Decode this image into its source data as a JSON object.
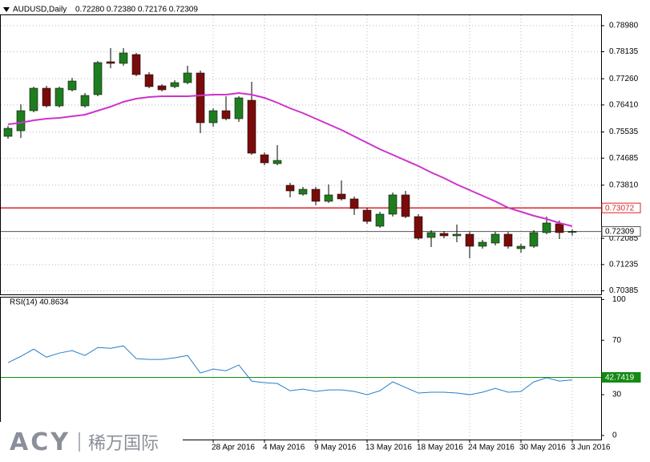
{
  "chart_data": [
    {
      "type": "candlestick",
      "title": "AUDUSD,Daily",
      "subtitle": "0.72280 0.72380 0.72176 0.72309",
      "categories": [
        null,
        null,
        null,
        null,
        null,
        null,
        null,
        null,
        null,
        null,
        null,
        null,
        null,
        null,
        null,
        null,
        "28 Apr 2016",
        null,
        null,
        null,
        "4 May 2016",
        null,
        null,
        null,
        "9 May 2016",
        null,
        null,
        null,
        "13 May 2016",
        null,
        null,
        null,
        "18 May 2016",
        null,
        null,
        null,
        "24 May 2016",
        null,
        null,
        null,
        "30 May 2016",
        null,
        null,
        null,
        "3 Jun 2016"
      ],
      "open": [
        0.75392,
        0.75574,
        0.76224,
        0.76952,
        0.7638,
        0.769,
        0.7638,
        0.76744,
        0.7781,
        0.77758,
        0.78044,
        0.77394,
        0.7703,
        0.77004,
        0.77134,
        0.77446,
        0.75834,
        0.76224,
        0.75964,
        0.76562,
        0.74794,
        0.74508,
        0.73806,
        0.7352,
        0.73676,
        0.73286,
        0.7352,
        0.73364,
        0.73,
        0.7248,
        0.7287,
        0.73494,
        0.72792,
        0.72116,
        0.72246,
        0.72168,
        0.7222,
        0.7183,
        0.71934,
        0.7222,
        0.71752,
        0.7183,
        0.72272,
        0.72558,
        0.7228
      ],
      "high": [
        0.7573,
        0.76432,
        0.77004,
        0.7703,
        0.77004,
        0.7729,
        0.76796,
        0.77836,
        0.78252,
        0.78252,
        0.78096,
        0.77472,
        0.77082,
        0.77212,
        0.7768,
        0.77524,
        0.76302,
        0.76692,
        0.76692,
        0.7716,
        0.74872,
        0.75106,
        0.73884,
        0.73754,
        0.73754,
        0.73832,
        0.73962,
        0.73442,
        0.73078,
        0.72948,
        0.73572,
        0.73624,
        0.7287,
        0.7235,
        0.72324,
        0.72532,
        0.72298,
        0.72038,
        0.72298,
        0.72298,
        0.71908,
        0.7235,
        0.72792,
        0.72662,
        0.7238
      ],
      "low": [
        0.75314,
        0.7534,
        0.76172,
        0.76328,
        0.76328,
        0.76848,
        0.76328,
        0.76692,
        0.77602,
        0.7768,
        0.77342,
        0.76952,
        0.76848,
        0.76952,
        0.77082,
        0.75496,
        0.75704,
        0.75912,
        0.7586,
        0.74794,
        0.74456,
        0.74456,
        0.73416,
        0.73468,
        0.73156,
        0.73234,
        0.73312,
        0.72844,
        0.72558,
        0.72428,
        0.72792,
        0.7274,
        0.72038,
        0.71804,
        0.7209,
        0.7196,
        0.7144,
        0.71752,
        0.71856,
        0.71752,
        0.71622,
        0.71778,
        0.7222,
        0.72064,
        0.72176
      ],
      "close": [
        0.75652,
        0.76224,
        0.76952,
        0.7638,
        0.76952,
        0.77186,
        0.76718,
        0.77784,
        0.77758,
        0.78096,
        0.77394,
        0.77004,
        0.769,
        0.77134,
        0.77446,
        0.75834,
        0.76224,
        0.75964,
        0.7664,
        0.74846,
        0.74534,
        0.74612,
        0.73624,
        0.73676,
        0.73286,
        0.73494,
        0.73364,
        0.73052,
        0.72636,
        0.7287,
        0.73494,
        0.72792,
        0.7209,
        0.72272,
        0.72168,
        0.7222,
        0.7183,
        0.7196,
        0.7222,
        0.7183,
        0.7183,
        0.72272,
        0.72584,
        0.72272,
        0.72309
      ],
      "bull_color": "#1e7d1e",
      "bear_color": "#7a0b0b",
      "wick_color": "#000000",
      "lines": [
        {
          "color": "#cc33cc",
          "values": [
            0.75782,
            0.75834,
            0.75912,
            0.75964,
            0.7599,
            0.76042,
            0.76094,
            0.76224,
            0.76354,
            0.7651,
            0.76614,
            0.76666,
            0.76692,
            0.76692,
            0.76692,
            0.76718,
            0.76744,
            0.76744,
            0.76796,
            0.76744,
            0.7664,
            0.76484,
            0.76302,
            0.76146,
            0.75964,
            0.75782,
            0.756,
            0.75392,
            0.75184,
            0.74976,
            0.74794,
            0.74612,
            0.7443,
            0.74222,
            0.7404,
            0.73832,
            0.7365,
            0.73468,
            0.73286,
            0.73078,
            0.72948,
            0.72818,
            0.72714,
            0.72584,
            0.7248
          ]
        }
      ],
      "levels": [
        {
          "value": 0.73072,
          "label": "0.73072",
          "color": "#d9262a"
        },
        {
          "value": 0.72309,
          "label": "0.72309",
          "color": "#555555"
        }
      ],
      "ylim": [
        0.7027,
        0.79344
      ],
      "yticks": [
        {
          "value": 0.7898,
          "label": "0.78980"
        },
        {
          "value": 0.78135,
          "label": "0.78135"
        },
        {
          "value": 0.7726,
          "label": "0.77260"
        },
        {
          "value": 0.7641,
          "label": "0.76410"
        },
        {
          "value": 0.75535,
          "label": "0.75535"
        },
        {
          "value": 0.74685,
          "label": "0.74685"
        },
        {
          "value": 0.7381,
          "label": "0.73810"
        },
        {
          "value": 0.72085,
          "label": "0.72085"
        },
        {
          "value": 0.71235,
          "label": "0.71235"
        },
        {
          "value": 0.70385,
          "label": "0.70385"
        }
      ],
      "grid": true
    },
    {
      "type": "line",
      "title": "RSI(14) 40.8634",
      "color": "#2a7fc8",
      "values": [
        53.5,
        58.2,
        63.5,
        57.6,
        60.6,
        62.4,
        58.8,
        64.7,
        64.1,
        65.9,
        56.5,
        55.9,
        55.9,
        57.1,
        58.8,
        45.9,
        48.8,
        47.6,
        51.8,
        40.0,
        38.8,
        38.2,
        32.9,
        34.1,
        32.4,
        33.5,
        33.5,
        32.4,
        30.0,
        32.9,
        39.4,
        35.3,
        31.2,
        31.8,
        31.8,
        31.2,
        30.0,
        31.8,
        34.7,
        31.8,
        32.4,
        39.4,
        42.4,
        40.0,
        40.8634
      ],
      "levels": [
        {
          "value": 42.7419,
          "color": "#138a13"
        }
      ],
      "ylim": [
        -3,
        102
      ],
      "yticks": [
        0,
        30,
        70,
        100
      ]
    }
  ],
  "logo": {
    "brand": "ACY",
    "name": "稀万国际"
  }
}
